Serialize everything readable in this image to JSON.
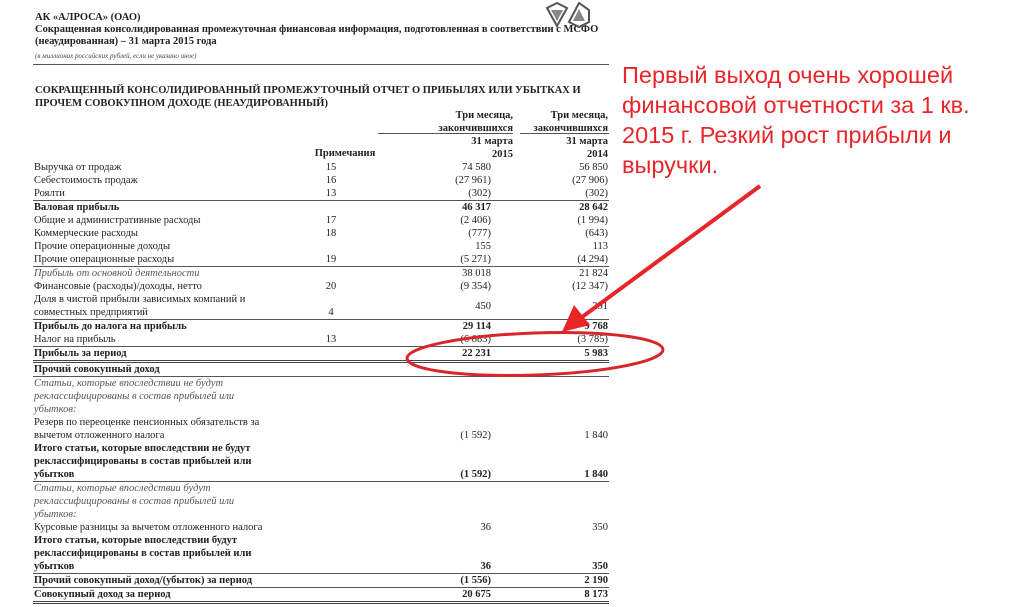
{
  "document": {
    "company": "АК «АЛРОСА» (ОАО)",
    "subtitle": "Сокращенная консолидированная промежуточная финансовая информация, подготовленная в соответствии с МСФО (неаудированная) – 31 марта 2015 года",
    "units": "(в миллионах российских рублей, если не указано иное)",
    "title": "СОКРАЩЕННЫЙ КОНСОЛИДИРОВАННЫЙ ПРОМЕЖУТОЧНЫЙ ОТЧЕТ О ПРИБЫЛЯХ ИЛИ УБЫТКАХ И ПРОЧЕМ СОВОКУПНОМ ДОХОДЕ (НЕАУДИРОВАННЫЙ)",
    "columns": {
      "notes": "Примечания",
      "period_2015": "Три месяца,\nзакончившихся",
      "date_2015": "31 марта\n2015",
      "period_2014": "Три месяца,\nзакончившихся",
      "date_2014": "31 марта\n2014"
    },
    "rows": [
      {
        "label": "Выручка от продаж",
        "note": "15",
        "v2015": "74 580",
        "v2014": "56 850",
        "style": ""
      },
      {
        "label": "Себестоимость продаж",
        "note": "16",
        "v2015": "(27 961)",
        "v2014": "(27 906)",
        "style": ""
      },
      {
        "label": "Роялти",
        "note": "13",
        "v2015": "(302)",
        "v2014": "(302)",
        "style": ""
      },
      {
        "label": "Валовая прибыль",
        "note": "",
        "v2015": "46 317",
        "v2014": "28 642",
        "style": "b top"
      },
      {
        "label": "Общие и административные расходы",
        "note": "17",
        "v2015": "(2 406)",
        "v2014": "(1 994)",
        "style": ""
      },
      {
        "label": "Коммерческие расходы",
        "note": "18",
        "v2015": "(777)",
        "v2014": "(643)",
        "style": ""
      },
      {
        "label": "Прочие операционные доходы",
        "note": "",
        "v2015": "155",
        "v2014": "113",
        "style": ""
      },
      {
        "label": "Прочие операционные расходы",
        "note": "19",
        "v2015": "(5 271)",
        "v2014": "(4 294)",
        "style": ""
      },
      {
        "label": "Прибыль от основной деятельности",
        "note": "",
        "v2015": "38 018",
        "v2014": "21 824",
        "style": "i top nb"
      },
      {
        "label": "Финансовые (расходы)/доходы, нетто",
        "note": "20",
        "v2015": "(9 354)",
        "v2014": "(12 347)",
        "style": ""
      },
      {
        "label": "Доля в чистой прибыли зависимых компаний и\nсовместных предприятий",
        "note": "4",
        "v2015": "450",
        "v2014": "291",
        "style": "mid"
      },
      {
        "label": "Прибыль до налога на прибыль",
        "note": "",
        "v2015": "29 114",
        "v2014": "9 768",
        "style": "b top"
      },
      {
        "label": "Налог на прибыль",
        "note": "13",
        "v2015": "(6 883)",
        "v2014": "(3 785)",
        "style": ""
      },
      {
        "label": "Прибыль за период",
        "note": "",
        "v2015": "22 231",
        "v2014": "5 983",
        "style": "b top dbl"
      },
      {
        "label": "Прочий совокупный доход",
        "note": "",
        "v2015": "",
        "v2014": "",
        "style": "b bot"
      },
      {
        "label": "Статьи, которые впоследствии не будут\nреклассифицированы в состав прибылей или\nубытков:",
        "note": "",
        "v2015": "",
        "v2014": "",
        "style": "i"
      },
      {
        "label": "Резерв по переоценке пенсионных обязательств за\nвычетом отложенного налога",
        "note": "",
        "v2015": "(1 592)",
        "v2014": "1 840",
        "style": ""
      },
      {
        "label": "Итого статьи, которые впоследствии не будут\nреклассифицированы в состав прибылей или\nубытков",
        "note": "",
        "v2015": "(1 592)",
        "v2014": "1 840",
        "style": "b bot"
      },
      {
        "label": "Статьи, которые впоследствии будут\nреклассифицированы в состав прибылей или\nубытков:",
        "note": "",
        "v2015": "",
        "v2014": "",
        "style": "i"
      },
      {
        "label": "Курсовые разницы за вычетом отложенного налога",
        "note": "",
        "v2015": "36",
        "v2014": "350",
        "style": ""
      },
      {
        "label": "Итого статьи, которые впоследствии будут\nреклассифицированы в состав прибылей или\nубытков",
        "note": "",
        "v2015": "36",
        "v2014": "350",
        "style": "b bot"
      },
      {
        "label": "Прочий совокупный доход/(убыток) за период",
        "note": "",
        "v2015": "(1 556)",
        "v2014": "2 190",
        "style": "b bot"
      },
      {
        "label": "Совокупный доход за период",
        "note": "",
        "v2015": "20 675",
        "v2014": "8 173",
        "style": "b dbl"
      }
    ]
  },
  "annotation": {
    "text": "Первый выход очень хорошей финансовой отчетности за 1 кв. 2015 г. Резкий рост прибыли и выручки.",
    "color": "#e8262a"
  }
}
